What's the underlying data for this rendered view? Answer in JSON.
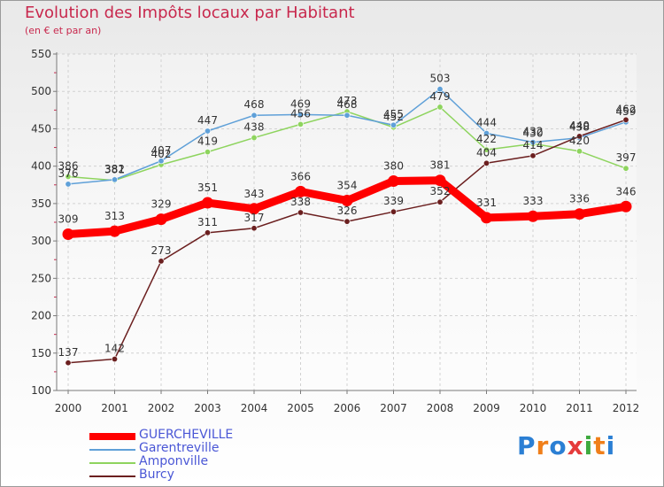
{
  "header": {
    "title": "Evolution des Impôts locaux par Habitant",
    "subtitle": "(en € et par an)"
  },
  "logo": {
    "text": "Proxiti",
    "colors": [
      "#2b7fd4",
      "#f07f1a",
      "#2b7fd4",
      "#e53b3b",
      "#3faa3f",
      "#f07f1a",
      "#2b7fd4"
    ]
  },
  "chart_data": {
    "type": "line",
    "x": [
      "2000",
      "2001",
      "2002",
      "2003",
      "2004",
      "2005",
      "2006",
      "2007",
      "2008",
      "2009",
      "2010",
      "2011",
      "2012"
    ],
    "ylim": [
      100,
      550
    ],
    "yticks": [
      "100",
      "150",
      "200",
      "250",
      "300",
      "350",
      "400",
      "450",
      "500",
      "550"
    ],
    "grid": true,
    "legend_position": "bottom-left",
    "series": [
      {
        "name": "GUERCHEVILLE",
        "color": "#ff0000",
        "values": [
          309,
          313,
          329,
          351,
          343,
          366,
          354,
          380,
          381,
          331,
          333,
          336,
          346
        ]
      },
      {
        "name": "Garentreville",
        "color": "#5fa0d8",
        "values": [
          376,
          382,
          407,
          447,
          468,
          469,
          468,
          455,
          503,
          444,
          432,
          438,
          459
        ]
      },
      {
        "name": "Amponville",
        "color": "#8ed45e",
        "values": [
          386,
          381,
          402,
          419,
          438,
          456,
          473,
          452,
          479,
          422,
          430,
          420,
          397
        ]
      },
      {
        "name": "Burcy",
        "color": "#6b1f1f",
        "values": [
          137,
          142,
          273,
          311,
          317,
          338,
          326,
          339,
          352,
          404,
          414,
          440,
          462
        ]
      }
    ]
  }
}
